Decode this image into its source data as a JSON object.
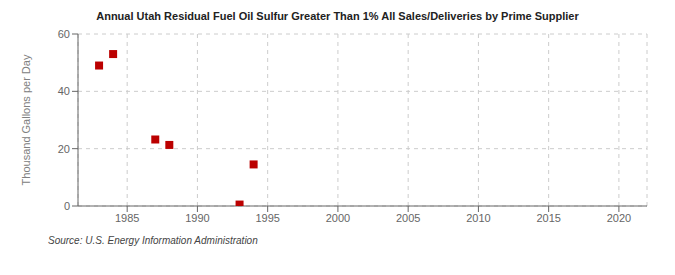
{
  "chart_data": {
    "type": "scatter",
    "title": "Annual Utah Residual Fuel Oil Sulfur Greater Than 1% All Sales/Deliveries by Prime Supplier",
    "ylabel": "Thousand Gallons per Day",
    "annotations": [
      "Source: U.S. Energy Information Administration"
    ],
    "x": [
      1983,
      1984,
      1987,
      1988,
      1993,
      1994
    ],
    "values": [
      49.0,
      53.0,
      23.2,
      21.3,
      0.5,
      14.5
    ],
    "color": "#bb0000",
    "marker": "square",
    "xlim": [
      1981.5,
      2022
    ],
    "xticks": [
      1985,
      1990,
      1995,
      2000,
      2005,
      2010,
      2015,
      2020
    ],
    "ylim": [
      0,
      60
    ],
    "yticks": [
      0,
      20,
      40,
      60
    ],
    "grid": true
  }
}
